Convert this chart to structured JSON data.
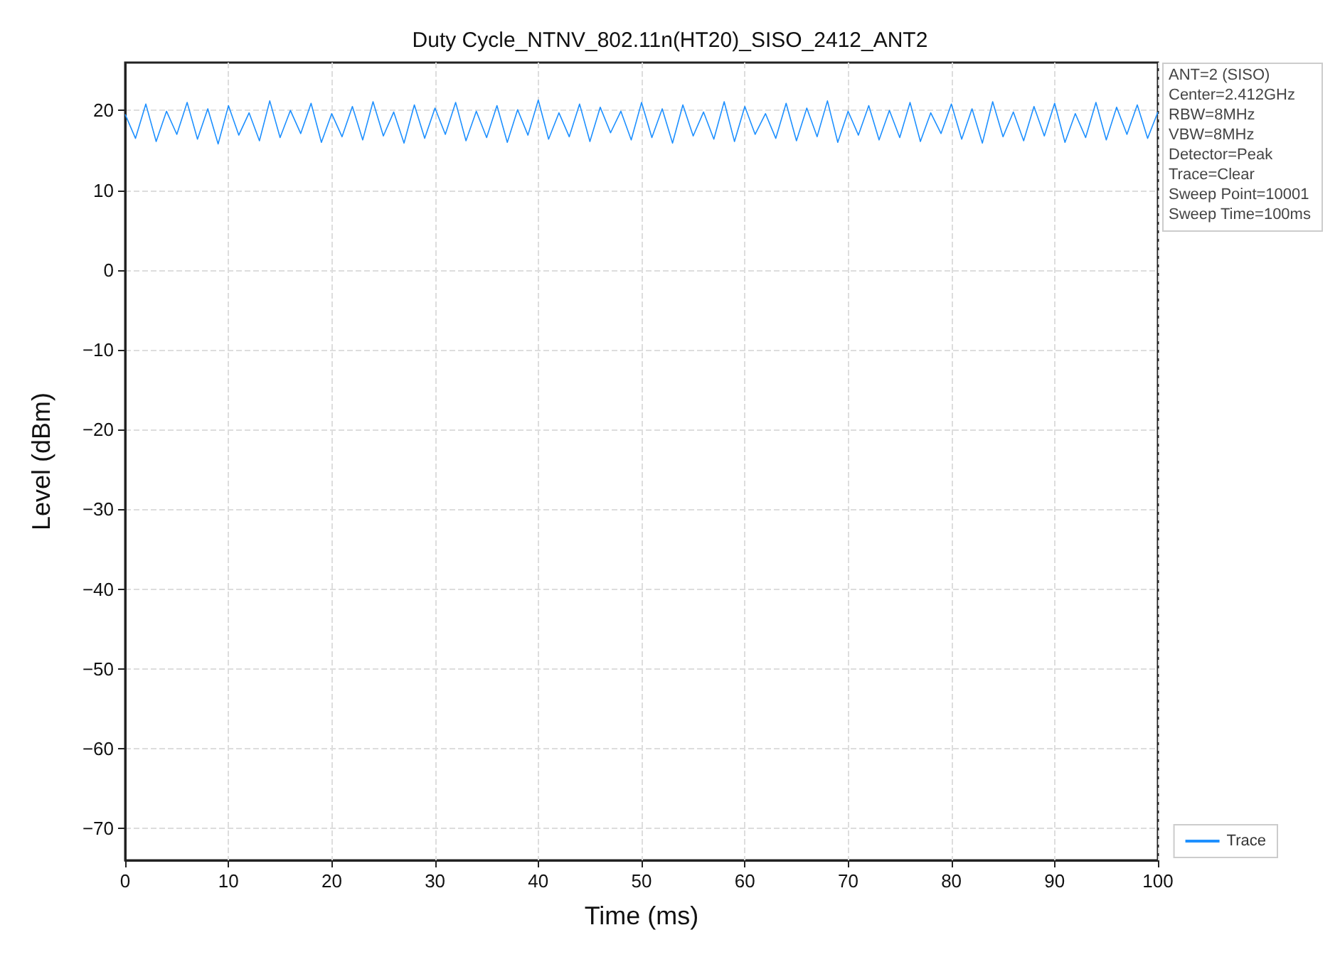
{
  "chart_data": {
    "type": "line",
    "title": "Duty Cycle_NTNV_802.11n(HT20)_SISO_2412_ANT2",
    "xlabel": "Time (ms)",
    "ylabel": "Level (dBm)",
    "xlim": [
      0,
      100
    ],
    "xticks": [
      0,
      10,
      20,
      30,
      40,
      50,
      60,
      70,
      80,
      90,
      100
    ],
    "ylim": [
      -74,
      26
    ],
    "yticks": [
      -70,
      -60,
      -50,
      -40,
      -30,
      -20,
      -10,
      0,
      10,
      20
    ],
    "grid": true,
    "legend": "bottom right",
    "marker": "none",
    "line_style": "solid",
    "annotations": [
      "ANT=2 (SISO)",
      "Center=2.412GHz",
      "RBW=8MHz",
      "VBW=8MHz",
      "Detector=Peak",
      "Trace=Clear",
      "Sweep Point=10001",
      "Sweep Time=100ms"
    ],
    "series": [
      {
        "name": "Trace",
        "color": "#1e90ff",
        "x": [
          0,
          1,
          2,
          3,
          4,
          5,
          6,
          7,
          8,
          9,
          10,
          11,
          12,
          13,
          14,
          15,
          16,
          17,
          18,
          19,
          20,
          21,
          22,
          23,
          24,
          25,
          26,
          27,
          28,
          29,
          30,
          31,
          32,
          33,
          34,
          35,
          36,
          37,
          38,
          39,
          40,
          41,
          42,
          43,
          44,
          45,
          46,
          47,
          48,
          49,
          50,
          51,
          52,
          53,
          54,
          55,
          56,
          57,
          58,
          59,
          60,
          61,
          62,
          63,
          64,
          65,
          66,
          67,
          68,
          69,
          70,
          71,
          72,
          73,
          74,
          75,
          76,
          77,
          78,
          79,
          80,
          81,
          82,
          83,
          84,
          85,
          86,
          87,
          88,
          89,
          90,
          91,
          92,
          93,
          94,
          95,
          96,
          97,
          98,
          99,
          100
        ],
        "values": [
          19.5,
          16.5,
          20.8,
          16.1,
          19.9,
          17.0,
          21.0,
          16.4,
          20.2,
          15.8,
          20.6,
          16.9,
          19.7,
          16.2,
          21.2,
          16.6,
          20.0,
          17.1,
          20.9,
          16.0,
          19.6,
          16.7,
          20.5,
          16.3,
          21.1,
          16.8,
          19.8,
          15.9,
          20.7,
          16.5,
          20.3,
          17.0,
          21.0,
          16.2,
          19.9,
          16.6,
          20.6,
          16.0,
          20.1,
          16.9,
          21.3,
          16.4,
          19.7,
          16.7,
          20.8,
          16.1,
          20.4,
          17.2,
          19.9,
          16.3,
          21.0,
          16.6,
          20.2,
          15.9,
          20.7,
          16.8,
          19.8,
          16.4,
          21.1,
          16.1,
          20.5,
          17.0,
          19.6,
          16.5,
          20.9,
          16.2,
          20.3,
          16.7,
          21.2,
          16.0,
          19.9,
          16.9,
          20.6,
          16.3,
          20.0,
          16.6,
          21.0,
          16.1,
          19.7,
          17.1,
          20.8,
          16.4,
          20.2,
          15.9,
          21.1,
          16.7,
          19.8,
          16.2,
          20.5,
          16.8,
          20.9,
          16.0,
          19.6,
          16.6,
          21.0,
          16.3,
          20.4,
          17.0,
          20.7,
          16.5,
          19.8
        ]
      }
    ]
  }
}
